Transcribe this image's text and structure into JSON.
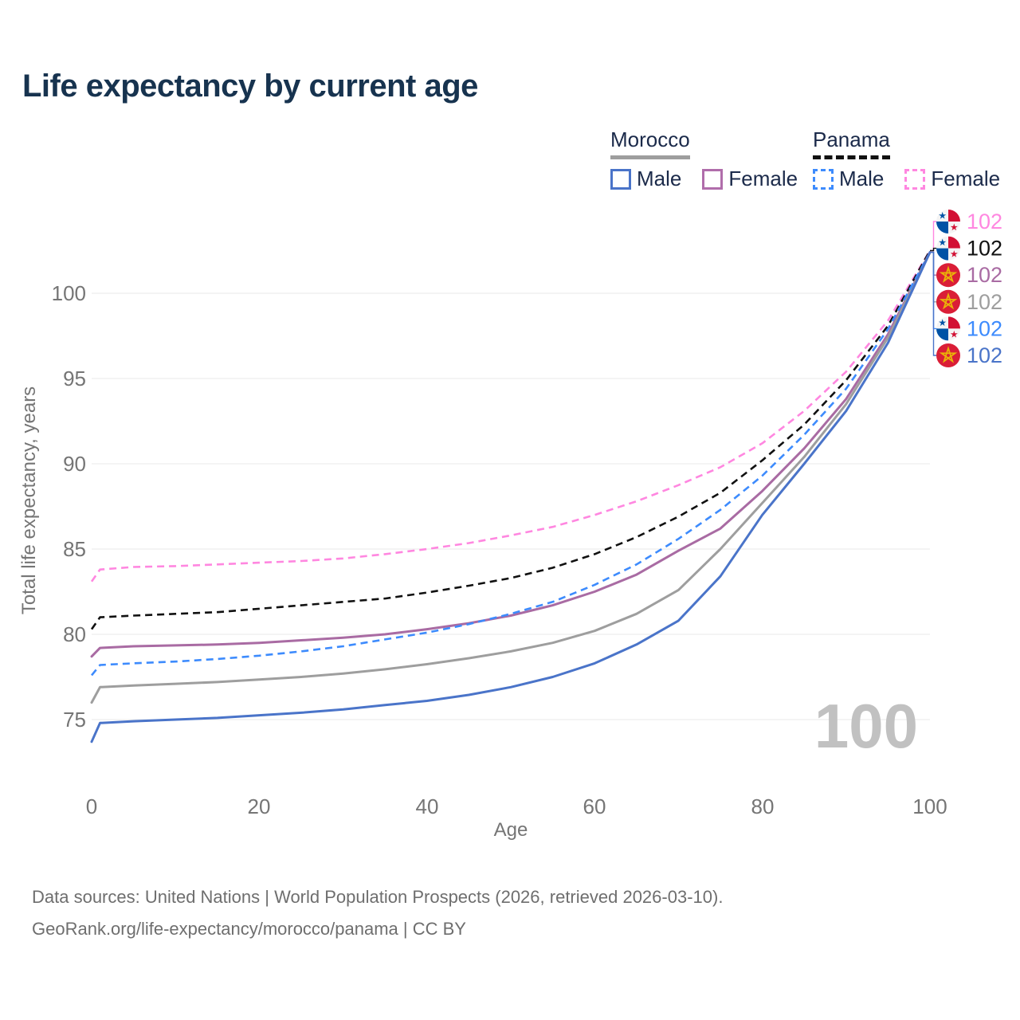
{
  "title": "Life expectancy by current age",
  "legend": {
    "groups": [
      {
        "country": "Morocco",
        "line_style": "solid",
        "line_color": "#9e9e9e",
        "entries": [
          {
            "label": "Male",
            "color": "#4a74c9"
          },
          {
            "label": "Female",
            "color": "#b06dab"
          }
        ]
      },
      {
        "country": "Panama",
        "line_style": "dashed",
        "line_color": "#111111",
        "entries": [
          {
            "label": "Male",
            "color": "#3d8bfd"
          },
          {
            "label": "Female",
            "color": "#ff87e0"
          }
        ]
      }
    ]
  },
  "watermark_age": "100",
  "footer": {
    "line1": "Data sources: United Nations | World Population Prospects (2026, retrieved 2026-03-10).",
    "line2": "GeoRank.org/life-expectancy/morocco/panama | CC BY"
  },
  "chart_data": {
    "type": "line",
    "title": "Life expectancy by current age",
    "xlabel": "Age",
    "ylabel": "Total life expectancy, years",
    "xlim": [
      0,
      100
    ],
    "ylim": [
      72.5,
      103.5
    ],
    "xticks": [
      0,
      20,
      40,
      60,
      80,
      100
    ],
    "yticks": [
      75,
      80,
      85,
      90,
      95,
      100
    ],
    "grid": "horizontal-only",
    "legend_position": "top-right",
    "ages": [
      0,
      1,
      5,
      10,
      15,
      20,
      25,
      30,
      35,
      40,
      45,
      50,
      55,
      60,
      65,
      70,
      75,
      80,
      85,
      90,
      95,
      100
    ],
    "series": [
      {
        "name": "Panama — Female",
        "country": "Panama",
        "sex": "female",
        "color": "#ff87e0",
        "dashed": true,
        "flag": "panama",
        "end_label": "102",
        "values": [
          83.1,
          83.8,
          83.95,
          84.0,
          84.1,
          84.2,
          84.3,
          84.45,
          84.7,
          85.0,
          85.35,
          85.8,
          86.3,
          87.0,
          87.8,
          88.75,
          89.8,
          91.2,
          93.1,
          95.4,
          98.4,
          102.5
        ]
      },
      {
        "name": "Panama — All",
        "country": "Panama",
        "sex": "both",
        "color": "#111111",
        "dashed": true,
        "flag": "panama",
        "end_label": "102",
        "values": [
          80.3,
          81.0,
          81.1,
          81.2,
          81.3,
          81.5,
          81.7,
          81.9,
          82.1,
          82.45,
          82.85,
          83.3,
          83.9,
          84.7,
          85.7,
          86.9,
          88.3,
          90.2,
          92.3,
          94.9,
          98.1,
          102.5
        ]
      },
      {
        "name": "Morocco — Female",
        "country": "Morocco",
        "sex": "female",
        "color": "#a96ba3",
        "dashed": false,
        "flag": "morocco",
        "end_label": "102",
        "values": [
          78.7,
          79.2,
          79.3,
          79.35,
          79.4,
          79.5,
          79.65,
          79.8,
          80.0,
          80.3,
          80.65,
          81.1,
          81.7,
          82.5,
          83.5,
          84.9,
          86.2,
          88.4,
          90.9,
          93.8,
          97.6,
          102.4
        ]
      },
      {
        "name": "Morocco — All",
        "country": "Morocco",
        "sex": "both",
        "color": "#9e9e9e",
        "dashed": false,
        "flag": "morocco",
        "end_label": "102",
        "values": [
          76.0,
          76.9,
          77.0,
          77.1,
          77.2,
          77.35,
          77.5,
          77.7,
          77.95,
          78.25,
          78.6,
          79.0,
          79.5,
          80.2,
          81.2,
          82.6,
          85.0,
          87.7,
          90.4,
          93.5,
          97.4,
          102.4
        ]
      },
      {
        "name": "Panama — Male",
        "country": "Panama",
        "sex": "male",
        "color": "#3d8bfd",
        "dashed": true,
        "flag": "panama",
        "end_label": "102",
        "values": [
          77.6,
          78.2,
          78.3,
          78.4,
          78.55,
          78.75,
          79.0,
          79.3,
          79.7,
          80.1,
          80.6,
          81.2,
          81.9,
          82.9,
          84.1,
          85.6,
          87.3,
          89.3,
          91.7,
          94.4,
          97.9,
          102.4
        ]
      },
      {
        "name": "Morocco — Male",
        "country": "Morocco",
        "sex": "male",
        "color": "#4a74c9",
        "dashed": false,
        "flag": "morocco",
        "end_label": "102",
        "values": [
          73.7,
          74.8,
          74.9,
          75.0,
          75.1,
          75.25,
          75.4,
          75.6,
          75.85,
          76.1,
          76.45,
          76.9,
          77.5,
          78.3,
          79.4,
          80.8,
          83.4,
          87.0,
          90.0,
          93.1,
          97.1,
          102.4
        ]
      }
    ]
  }
}
